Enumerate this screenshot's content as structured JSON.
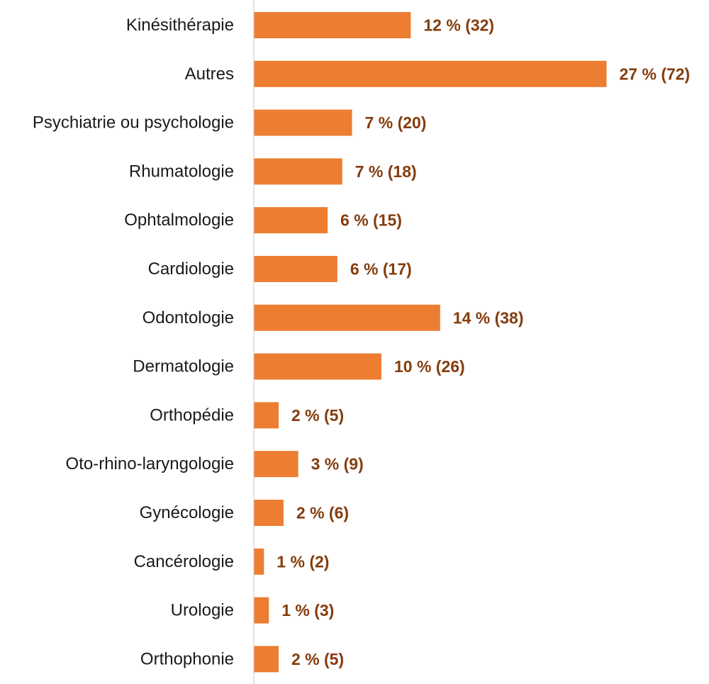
{
  "chart_data": {
    "type": "bar",
    "orientation": "horizontal",
    "categories": [
      "Kinésithérapie",
      "Autres",
      "Psychiatrie ou psychologie",
      "Rhumatologie",
      "Ophtalmologie",
      "Cardiologie",
      "Odontologie",
      "Dermatologie",
      "Orthopédie",
      "Oto-rhino-laryngologie",
      "Gynécologie",
      "Cancérologie",
      "Urologie",
      "Orthophonie"
    ],
    "series": [
      {
        "values": [
          32,
          72,
          20,
          18,
          15,
          17,
          38,
          26,
          5,
          9,
          6,
          2,
          3,
          5
        ]
      }
    ],
    "data_labels": [
      "12 % (32)",
      "27 % (72)",
      "7 % (20)",
      "7 % (18)",
      "6 % (15)",
      "6 % (17)",
      "14 % (38)",
      "10 % (26)",
      "2 % (5)",
      "3 % (9)",
      "2 % (6)",
      "1 % (2)",
      "1 % (3)",
      "2 % (5)"
    ],
    "title": "",
    "xlabel": "",
    "ylabel": "",
    "xlim": [
      0,
      72
    ],
    "grid": false,
    "legend": "none",
    "colors": {
      "bar": "#ED7D31",
      "data_label": "#843C0C",
      "axis": "#D9D9D9",
      "category_label": "#1a1a1a"
    }
  }
}
